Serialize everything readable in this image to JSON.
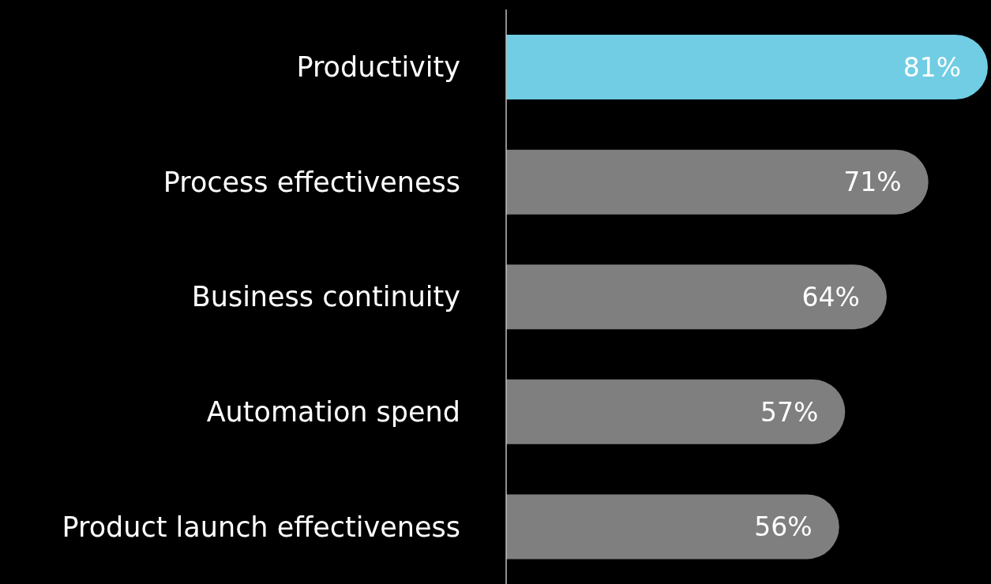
{
  "chart_data": {
    "type": "bar",
    "orientation": "horizontal",
    "categories": [
      "Productivity",
      "Process effectiveness",
      "Business continuity",
      "Automation spend",
      "Product launch effectiveness"
    ],
    "values": [
      81,
      71,
      64,
      57,
      56
    ],
    "value_labels": [
      "81%",
      "71%",
      "64%",
      "57%",
      "56%"
    ],
    "colors": [
      "#70cde3",
      "#7f7f7f",
      "#7f7f7f",
      "#7f7f7f",
      "#7f7f7f"
    ]
  }
}
